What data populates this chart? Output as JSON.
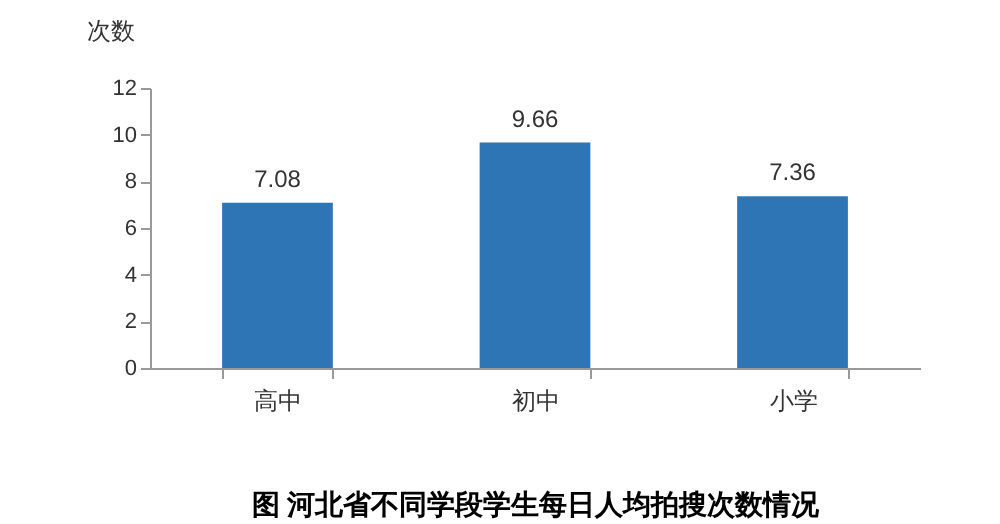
{
  "chart_data": {
    "type": "bar",
    "title": "图  河北省不同学段学生每日人均拍搜次数情况",
    "ylabel": "次数",
    "categories": [
      "高中",
      "初中",
      "小学"
    ],
    "values": [
      7.08,
      9.66,
      7.36
    ],
    "color": "#2e75b6",
    "ylim": [
      0,
      12
    ],
    "yticks": [
      0,
      2,
      4,
      6,
      8,
      10,
      12
    ],
    "data_labels": true,
    "grid": false
  }
}
